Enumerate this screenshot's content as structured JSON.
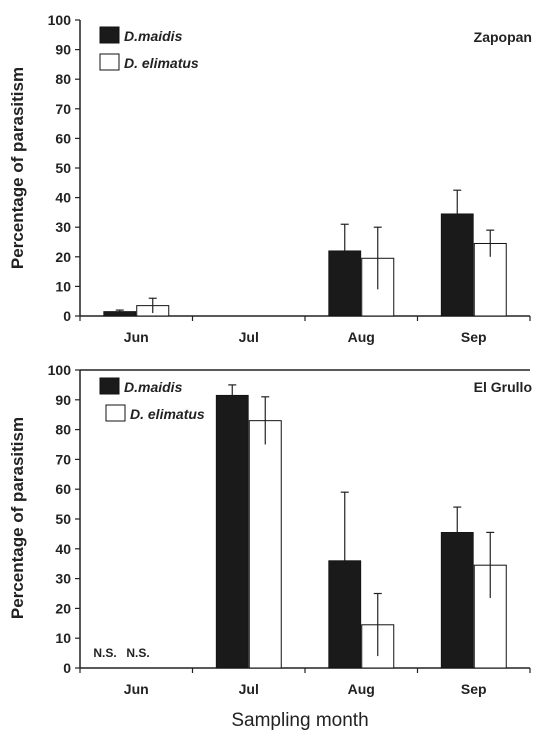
{
  "chart_data": [
    {
      "type": "bar",
      "title": "Zapopan",
      "ylabel": "Percentage of parasitism",
      "xlabel": "",
      "ylim": [
        0,
        100
      ],
      "yticks": [
        0,
        10,
        20,
        30,
        40,
        50,
        60,
        70,
        80,
        90,
        100
      ],
      "categories": [
        "Jun",
        "Jul",
        "Aug",
        "Sep"
      ],
      "legend_position": "top-left",
      "series": [
        {
          "name": "D.maidis",
          "color": "#1a1a1a",
          "values": [
            1.5,
            null,
            22,
            34.5
          ],
          "errors": [
            0.5,
            null,
            9,
            8
          ]
        },
        {
          "name": "D. elimatus",
          "color": "#ffffff",
          "values": [
            3.5,
            null,
            19.5,
            24.5
          ],
          "errors": [
            2.5,
            null,
            10.5,
            4.5
          ]
        }
      ],
      "annotations": []
    },
    {
      "type": "bar",
      "title": "El Grullo",
      "ylabel": "Percentage of parasitism",
      "xlabel": "Sampling month",
      "ylim": [
        0,
        100
      ],
      "yticks": [
        0,
        10,
        20,
        30,
        40,
        50,
        60,
        70,
        80,
        90,
        100
      ],
      "categories": [
        "Jun",
        "Jul",
        "Aug",
        "Sep"
      ],
      "legend_position": "top-left",
      "series": [
        {
          "name": "D.maidis",
          "color": "#1a1a1a",
          "values": [
            null,
            91.5,
            36,
            45.5
          ],
          "errors": [
            null,
            3.5,
            23,
            8.5
          ]
        },
        {
          "name": "D. elimatus",
          "color": "#ffffff",
          "values": [
            null,
            83,
            14.5,
            34.5
          ],
          "errors": [
            null,
            8,
            10.5,
            11
          ]
        }
      ],
      "annotations": [
        "N.S.",
        "N.S."
      ]
    }
  ]
}
